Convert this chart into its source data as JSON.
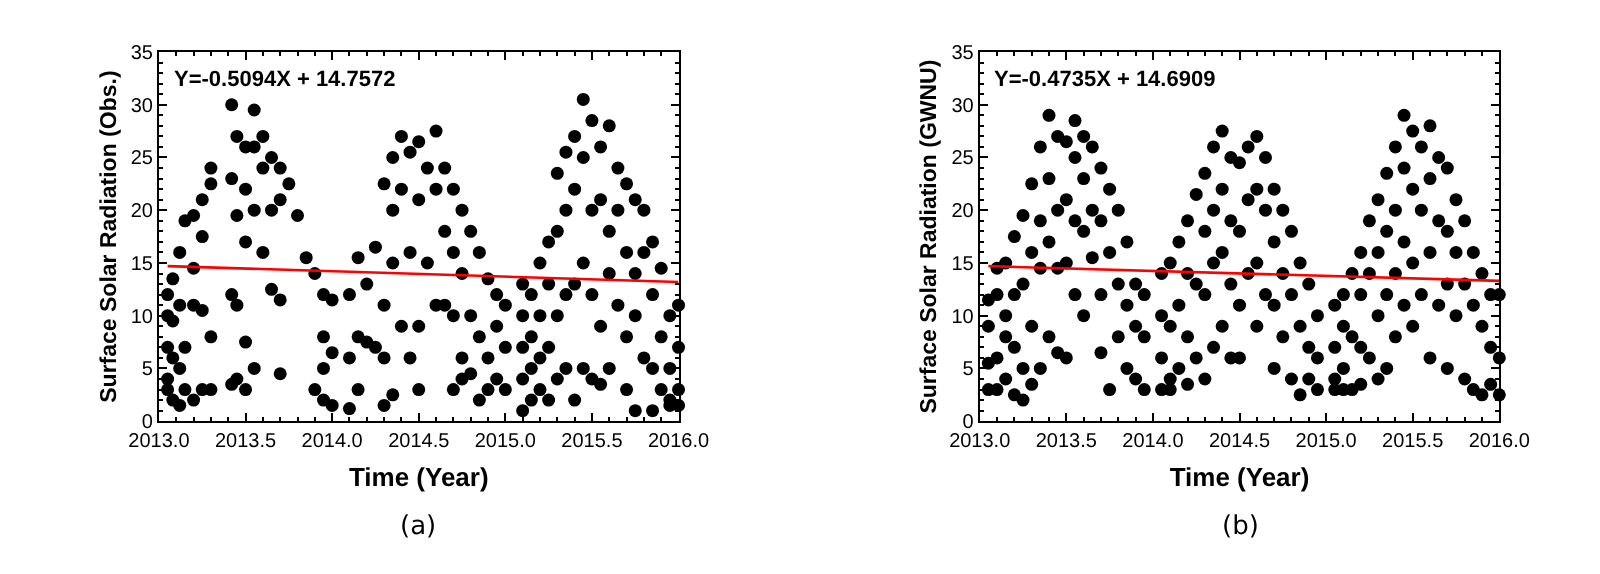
{
  "chart_data": [
    {
      "type": "scatter",
      "xlabel": "Time (Year)",
      "ylabel": "Surface Solar Radiation (Obs.)",
      "xlim": [
        2013.0,
        2016.0
      ],
      "xticks": [
        {
          "value": 2013.0,
          "label": "2013.0"
        },
        {
          "value": 2013.5,
          "label": "2013.5"
        },
        {
          "value": 2014.0,
          "label": "2014.0"
        },
        {
          "value": 2014.5,
          "label": "2014.5"
        },
        {
          "value": 2015.0,
          "label": "2015.0"
        },
        {
          "value": 2015.5,
          "label": "2015.5"
        },
        {
          "value": 2016.0,
          "label": "2016.0"
        }
      ],
      "ylim": [
        0,
        35
      ],
      "yticks": [
        0,
        5,
        10,
        15,
        20,
        25,
        30,
        35
      ],
      "grid": false,
      "marker": "circle",
      "annotations": [
        "Y=-0.5094X + 14.7572",
        "(a)"
      ],
      "series": [
        {
          "color": "#000000",
          "x": [
            2013.05,
            2013.05,
            2013.05,
            2013.05,
            2013.05,
            2013.08,
            2013.08,
            2013.08,
            2013.08,
            2013.12,
            2013.12,
            2013.12,
            2013.12,
            2013.15,
            2013.15,
            2013.15,
            2013.2,
            2013.2,
            2013.2,
            2013.2,
            2013.25,
            2013.25,
            2013.25,
            2013.25,
            2013.3,
            2013.3,
            2013.3,
            2013.3,
            2013.42,
            2013.42,
            2013.42,
            2013.42,
            2013.45,
            2013.45,
            2013.45,
            2013.45,
            2013.5,
            2013.5,
            2013.5,
            2013.5,
            2013.5,
            2013.55,
            2013.55,
            2013.55,
            2013.55,
            2013.6,
            2013.6,
            2013.6,
            2013.65,
            2013.65,
            2013.65,
            2013.7,
            2013.7,
            2013.7,
            2013.7,
            2013.75,
            2013.8,
            2013.85,
            2013.9,
            2013.9,
            2013.95,
            2013.95,
            2013.95,
            2013.95,
            2014.0,
            2014.0,
            2014.0,
            2014.1,
            2014.1,
            2014.1,
            2014.15,
            2014.15,
            2014.15,
            2014.2,
            2014.2,
            2014.25,
            2014.25,
            2014.3,
            2014.3,
            2014.3,
            2014.3,
            2014.35,
            2014.35,
            2014.35,
            2014.35,
            2014.4,
            2014.4,
            2014.4,
            2014.45,
            2014.45,
            2014.45,
            2014.5,
            2014.5,
            2014.5,
            2014.5,
            2014.55,
            2014.55,
            2014.6,
            2014.6,
            2014.6,
            2014.65,
            2014.65,
            2014.65,
            2014.7,
            2014.7,
            2014.7,
            2014.7,
            2014.75,
            2014.75,
            2014.75,
            2014.75,
            2014.8,
            2014.8,
            2014.8,
            2014.85,
            2014.85,
            2014.85,
            2014.9,
            2014.9,
            2014.9,
            2014.95,
            2014.95,
            2014.95,
            2015.0,
            2015.0,
            2015.0,
            2015.1,
            2015.1,
            2015.1,
            2015.1,
            2015.1,
            2015.15,
            2015.15,
            2015.15,
            2015.15,
            2015.2,
            2015.2,
            2015.2,
            2015.2,
            2015.25,
            2015.25,
            2015.25,
            2015.25,
            2015.3,
            2015.3,
            2015.3,
            2015.3,
            2015.35,
            2015.35,
            2015.35,
            2015.35,
            2015.4,
            2015.4,
            2015.4,
            2015.4,
            2015.45,
            2015.45,
            2015.45,
            2015.45,
            2015.5,
            2015.5,
            2015.5,
            2015.5,
            2015.55,
            2015.55,
            2015.55,
            2015.55,
            2015.6,
            2015.6,
            2015.6,
            2015.6,
            2015.65,
            2015.65,
            2015.65,
            2015.7,
            2015.7,
            2015.7,
            2015.7,
            2015.75,
            2015.75,
            2015.75,
            2015.75,
            2015.8,
            2015.8,
            2015.8,
            2015.85,
            2015.85,
            2015.85,
            2015.85,
            2015.9,
            2015.9,
            2015.9,
            2015.95,
            2015.95,
            2015.95,
            2015.95,
            2016.0,
            2016.0,
            2016.0,
            2016.0
          ],
          "values": [
            12,
            4,
            10,
            7,
            3,
            13.5,
            6,
            2,
            9.5,
            16,
            11,
            5,
            1.5,
            19,
            7,
            3,
            19.5,
            14.5,
            11,
            2,
            21,
            17.5,
            10.5,
            3,
            24,
            22.5,
            8,
            3,
            30,
            23,
            12,
            3.5,
            27,
            19.5,
            11,
            4,
            26,
            22,
            17,
            7.5,
            3,
            29.5,
            26,
            20,
            5,
            27,
            24,
            16,
            25,
            20,
            12.5,
            24,
            21,
            4.5,
            11.5,
            22.5,
            19.5,
            15.5,
            14,
            3,
            12,
            8,
            5,
            2,
            11.5,
            6.5,
            1.5,
            12,
            6,
            1.2,
            15.5,
            8,
            3,
            13,
            7.5,
            16.5,
            7,
            22.5,
            11,
            6,
            1.5,
            25,
            20,
            15,
            2.5,
            27,
            22,
            9,
            25.5,
            16,
            6,
            26.5,
            21,
            9,
            3,
            24,
            15,
            27.5,
            22,
            11,
            24,
            18,
            11,
            22,
            16,
            10,
            3,
            20,
            14,
            6,
            4,
            18,
            10,
            4.5,
            16,
            8,
            2,
            13.5,
            6,
            3,
            12,
            9,
            4,
            11,
            7,
            3,
            13,
            10,
            7,
            4,
            1,
            12,
            8,
            5,
            2,
            15,
            10,
            6,
            3,
            17,
            13,
            7,
            2,
            23.5,
            18,
            10,
            4,
            25.5,
            20,
            12,
            5,
            27,
            22,
            13,
            2,
            30.5,
            25,
            15,
            5,
            28.5,
            20,
            12,
            4,
            26,
            21,
            9,
            3.5,
            28,
            18,
            14,
            5,
            24,
            20,
            11,
            22.5,
            16,
            8,
            3,
            21,
            14,
            10,
            1,
            20,
            16,
            6,
            17,
            12,
            5,
            1,
            14.5,
            8,
            3,
            10,
            5,
            2,
            1.5,
            11,
            7,
            3,
            1.5
          ]
        },
        {
          "type": "line",
          "color": "#ff0000",
          "marker": "none",
          "x": [
            2013.05,
            2016.0
          ],
          "values": [
            14.7,
            13.2
          ]
        }
      ]
    },
    {
      "type": "scatter",
      "xlabel": "Time (Year)",
      "ylabel": "Surface Solar Radiation (GWNU)",
      "xlim": [
        2013.0,
        2016.0
      ],
      "xticks": [
        {
          "value": 2013.0,
          "label": "2013.0"
        },
        {
          "value": 2013.5,
          "label": "2013.5"
        },
        {
          "value": 2014.0,
          "label": "2014.0"
        },
        {
          "value": 2014.5,
          "label": "2014.5"
        },
        {
          "value": 2015.0,
          "label": "2015.0"
        },
        {
          "value": 2015.5,
          "label": "2015.5"
        },
        {
          "value": 2016.0,
          "label": "2016.0"
        }
      ],
      "ylim": [
        0,
        35
      ],
      "yticks": [
        0,
        5,
        10,
        15,
        20,
        25,
        30,
        35
      ],
      "grid": false,
      "marker": "circle",
      "annotations": [
        "Y=-0.4735X + 14.6909",
        "(b)"
      ],
      "series": [
        {
          "color": "#000000",
          "x": [
            2013.05,
            2013.05,
            2013.05,
            2013.05,
            2013.1,
            2013.1,
            2013.1,
            2013.1,
            2013.15,
            2013.15,
            2013.15,
            2013.15,
            2013.2,
            2013.2,
            2013.2,
            2013.2,
            2013.25,
            2013.25,
            2013.25,
            2013.25,
            2013.3,
            2013.3,
            2013.3,
            2013.3,
            2013.35,
            2013.35,
            2013.35,
            2013.35,
            2013.4,
            2013.4,
            2013.4,
            2013.4,
            2013.45,
            2013.45,
            2013.45,
            2013.45,
            2013.5,
            2013.5,
            2013.5,
            2013.5,
            2013.55,
            2013.55,
            2013.55,
            2013.55,
            2013.6,
            2013.6,
            2013.6,
            2013.6,
            2013.65,
            2013.65,
            2013.65,
            2013.7,
            2013.7,
            2013.7,
            2013.7,
            2013.75,
            2013.75,
            2013.75,
            2013.8,
            2013.8,
            2013.8,
            2013.85,
            2013.85,
            2013.85,
            2013.9,
            2013.9,
            2013.9,
            2013.95,
            2013.95,
            2013.95,
            2014.05,
            2014.05,
            2014.05,
            2014.05,
            2014.1,
            2014.1,
            2014.1,
            2014.1,
            2014.15,
            2014.15,
            2014.15,
            2014.2,
            2014.2,
            2014.2,
            2014.2,
            2014.25,
            2014.25,
            2014.25,
            2014.3,
            2014.3,
            2014.3,
            2014.3,
            2014.35,
            2014.35,
            2014.35,
            2014.35,
            2014.4,
            2014.4,
            2014.4,
            2014.4,
            2014.45,
            2014.45,
            2014.45,
            2014.45,
            2014.5,
            2014.5,
            2014.5,
            2014.5,
            2014.55,
            2014.55,
            2014.55,
            2014.6,
            2014.6,
            2014.6,
            2014.6,
            2014.65,
            2014.65,
            2014.65,
            2014.7,
            2014.7,
            2014.7,
            2014.7,
            2014.75,
            2014.75,
            2014.75,
            2014.8,
            2014.8,
            2014.8,
            2014.85,
            2014.85,
            2014.85,
            2014.9,
            2014.9,
            2014.9,
            2014.95,
            2014.95,
            2014.95,
            2015.05,
            2015.05,
            2015.05,
            2015.05,
            2015.1,
            2015.1,
            2015.1,
            2015.1,
            2015.15,
            2015.15,
            2015.15,
            2015.2,
            2015.2,
            2015.2,
            2015.2,
            2015.25,
            2015.25,
            2015.25,
            2015.3,
            2015.3,
            2015.3,
            2015.3,
            2015.35,
            2015.35,
            2015.35,
            2015.35,
            2015.4,
            2015.4,
            2015.4,
            2015.4,
            2015.45,
            2015.45,
            2015.45,
            2015.45,
            2015.5,
            2015.5,
            2015.5,
            2015.5,
            2015.55,
            2015.55,
            2015.55,
            2015.6,
            2015.6,
            2015.6,
            2015.6,
            2015.65,
            2015.65,
            2015.65,
            2015.7,
            2015.7,
            2015.7,
            2015.7,
            2015.75,
            2015.75,
            2015.75,
            2015.8,
            2015.8,
            2015.8,
            2015.85,
            2015.85,
            2015.85,
            2015.9,
            2015.9,
            2015.9,
            2015.95,
            2015.95,
            2015.95,
            2016.0,
            2016.0,
            2016.0
          ],
          "values": [
            9,
            3,
            5.5,
            11.5,
            12,
            3,
            6,
            14.5,
            15,
            4,
            8,
            10,
            17.5,
            2.5,
            7,
            12,
            19.5,
            2,
            5,
            13,
            22.5,
            16,
            9,
            3.5,
            26,
            19,
            14.5,
            5,
            29,
            23,
            17,
            8,
            27,
            20,
            14.5,
            6.5,
            26.5,
            21,
            15,
            6,
            28.5,
            25,
            19,
            12,
            27,
            23,
            18,
            10,
            26,
            20,
            15.5,
            24,
            19,
            12,
            6.5,
            22,
            16,
            3,
            20,
            13,
            8,
            17,
            11,
            5,
            13,
            9,
            4,
            12,
            8,
            3,
            14,
            10,
            6,
            3,
            15,
            9,
            4,
            3,
            17,
            11,
            5,
            19,
            14,
            8,
            3.5,
            21.5,
            13,
            6,
            23.5,
            18,
            12,
            4,
            26,
            20,
            15,
            7,
            27.5,
            22,
            16,
            9,
            25,
            19,
            13,
            6,
            24.5,
            18,
            11,
            6,
            26,
            21,
            14,
            27,
            22,
            15,
            9,
            25,
            20,
            12,
            22,
            17,
            11,
            5,
            20,
            14,
            8,
            18,
            12,
            4,
            15,
            9,
            2.5,
            13,
            7,
            4,
            10,
            6,
            3,
            11,
            7,
            4,
            3,
            12,
            9,
            5,
            3,
            14,
            8,
            3,
            16,
            12,
            7,
            3.5,
            19,
            14,
            6,
            21,
            16,
            10,
            4,
            23.5,
            18,
            12,
            5,
            26,
            20,
            14,
            8,
            29,
            24,
            17,
            11,
            27.5,
            22,
            15,
            9,
            26,
            20,
            12,
            28,
            23,
            16,
            6,
            25,
            19,
            11,
            24,
            18,
            13,
            5,
            21,
            16,
            10,
            19,
            13,
            4,
            16,
            11,
            3,
            14,
            9,
            2.5,
            12,
            7,
            3.5,
            12,
            6,
            2.5
          ]
        },
        {
          "type": "line",
          "color": "#ff0000",
          "marker": "none",
          "x": [
            2013.05,
            2016.0
          ],
          "values": [
            14.7,
            13.3
          ]
        }
      ]
    }
  ]
}
